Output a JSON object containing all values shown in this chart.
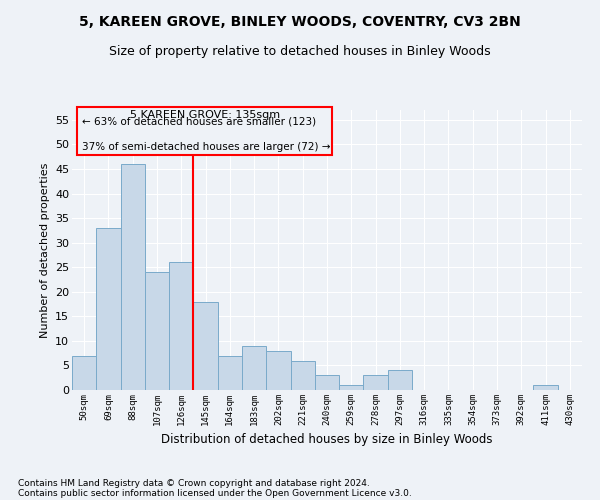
{
  "title": "5, KAREEN GROVE, BINLEY WOODS, COVENTRY, CV3 2BN",
  "subtitle": "Size of property relative to detached houses in Binley Woods",
  "xlabel": "Distribution of detached houses by size in Binley Woods",
  "ylabel": "Number of detached properties",
  "footnote1": "Contains HM Land Registry data © Crown copyright and database right 2024.",
  "footnote2": "Contains public sector information licensed under the Open Government Licence v3.0.",
  "categories": [
    "50sqm",
    "69sqm",
    "88sqm",
    "107sqm",
    "126sqm",
    "145sqm",
    "164sqm",
    "183sqm",
    "202sqm",
    "221sqm",
    "240sqm",
    "259sqm",
    "278sqm",
    "297sqm",
    "316sqm",
    "335sqm",
    "354sqm",
    "373sqm",
    "392sqm",
    "411sqm",
    "430sqm"
  ],
  "values": [
    7,
    33,
    46,
    24,
    26,
    18,
    7,
    9,
    8,
    6,
    3,
    1,
    3,
    4,
    0,
    0,
    0,
    0,
    0,
    1,
    0
  ],
  "bar_color": "#c8d8e8",
  "bar_edge_color": "#7aaaca",
  "vline_x": 4.5,
  "vline_color": "red",
  "annotation_title": "5 KAREEN GROVE: 135sqm",
  "annotation_line1": "← 63% of detached houses are smaller (123)",
  "annotation_line2": "37% of semi-detached houses are larger (72) →",
  "annotation_box_color": "red",
  "ylim": [
    0,
    57
  ],
  "yticks": [
    0,
    5,
    10,
    15,
    20,
    25,
    30,
    35,
    40,
    45,
    50,
    55
  ],
  "bg_color": "#eef2f7",
  "grid_color": "white",
  "title_fontsize": 10,
  "subtitle_fontsize": 9,
  "footnote_fontsize": 6.5
}
